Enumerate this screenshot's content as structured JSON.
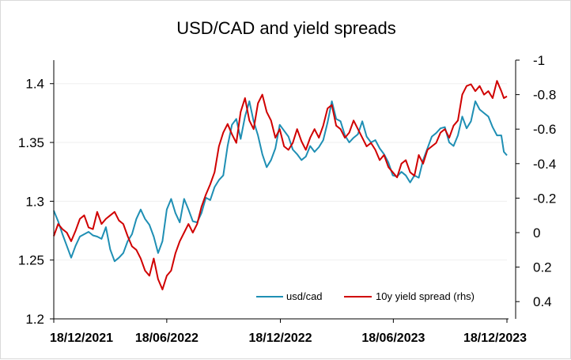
{
  "chart_data": {
    "type": "line",
    "title": "USD/CAD and yield spreads",
    "xlabel": "",
    "ylabel": "",
    "x_ticks": [
      "18/12/2021",
      "18/06/2022",
      "18/12/2022",
      "18/06/2023",
      "18/12/2023"
    ],
    "xlim": [
      "2021-12-18",
      "2023-12-18"
    ],
    "ylim": [
      1.2,
      1.42
    ],
    "y_ticks": [
      "1.2",
      "1.25",
      "1.3",
      "1.35",
      "1.4"
    ],
    "y2lim": [
      -1.0,
      0.5
    ],
    "y2_inverted": true,
    "y2_ticks": [
      "-1",
      "-0.8",
      "-0.6",
      "-0.4",
      "-0.2",
      "0",
      "0.2",
      "0.4"
    ],
    "grid": "horizontal",
    "legend": "bottom-right",
    "series": [
      {
        "name": "usd/cad",
        "axis": "left",
        "color": "#1f8fb4",
        "points": [
          [
            "2021-12-18",
            1.292
          ],
          [
            "2021-12-25",
            1.283
          ],
          [
            "2022-01-01",
            1.272
          ],
          [
            "2022-01-08",
            1.262
          ],
          [
            "2022-01-15",
            1.252
          ],
          [
            "2022-01-22",
            1.262
          ],
          [
            "2022-01-29",
            1.27
          ],
          [
            "2022-02-05",
            1.272
          ],
          [
            "2022-02-12",
            1.274
          ],
          [
            "2022-02-19",
            1.271
          ],
          [
            "2022-02-26",
            1.27
          ],
          [
            "2022-03-05",
            1.268
          ],
          [
            "2022-03-12",
            1.278
          ],
          [
            "2022-03-19",
            1.259
          ],
          [
            "2022-03-26",
            1.249
          ],
          [
            "2022-04-02",
            1.252
          ],
          [
            "2022-04-09",
            1.256
          ],
          [
            "2022-04-16",
            1.266
          ],
          [
            "2022-04-23",
            1.272
          ],
          [
            "2022-04-30",
            1.285
          ],
          [
            "2022-05-07",
            1.293
          ],
          [
            "2022-05-14",
            1.285
          ],
          [
            "2022-05-21",
            1.28
          ],
          [
            "2022-05-28",
            1.27
          ],
          [
            "2022-06-04",
            1.256
          ],
          [
            "2022-06-11",
            1.266
          ],
          [
            "2022-06-18",
            1.293
          ],
          [
            "2022-06-25",
            1.302
          ],
          [
            "2022-07-02",
            1.29
          ],
          [
            "2022-07-09",
            1.282
          ],
          [
            "2022-07-16",
            1.302
          ],
          [
            "2022-07-23",
            1.293
          ],
          [
            "2022-07-30",
            1.283
          ],
          [
            "2022-08-06",
            1.282
          ],
          [
            "2022-08-13",
            1.29
          ],
          [
            "2022-08-20",
            1.303
          ],
          [
            "2022-08-27",
            1.301
          ],
          [
            "2022-09-03",
            1.312
          ],
          [
            "2022-09-10",
            1.318
          ],
          [
            "2022-09-17",
            1.322
          ],
          [
            "2022-09-24",
            1.347
          ],
          [
            "2022-10-01",
            1.365
          ],
          [
            "2022-10-08",
            1.37
          ],
          [
            "2022-10-15",
            1.353
          ],
          [
            "2022-10-22",
            1.372
          ],
          [
            "2022-10-29",
            1.385
          ],
          [
            "2022-11-05",
            1.368
          ],
          [
            "2022-11-12",
            1.356
          ],
          [
            "2022-11-19",
            1.34
          ],
          [
            "2022-11-26",
            1.329
          ],
          [
            "2022-12-03",
            1.335
          ],
          [
            "2022-12-10",
            1.345
          ],
          [
            "2022-12-17",
            1.365
          ],
          [
            "2022-12-24",
            1.36
          ],
          [
            "2022-12-31",
            1.355
          ],
          [
            "2023-01-07",
            1.344
          ],
          [
            "2023-01-14",
            1.34
          ],
          [
            "2023-01-21",
            1.335
          ],
          [
            "2023-01-28",
            1.338
          ],
          [
            "2023-02-04",
            1.347
          ],
          [
            "2023-02-11",
            1.342
          ],
          [
            "2023-02-18",
            1.346
          ],
          [
            "2023-02-25",
            1.352
          ],
          [
            "2023-03-04",
            1.367
          ],
          [
            "2023-03-11",
            1.385
          ],
          [
            "2023-03-18",
            1.37
          ],
          [
            "2023-03-25",
            1.368
          ],
          [
            "2023-04-01",
            1.356
          ],
          [
            "2023-04-08",
            1.35
          ],
          [
            "2023-04-15",
            1.354
          ],
          [
            "2023-04-22",
            1.357
          ],
          [
            "2023-04-29",
            1.368
          ],
          [
            "2023-05-06",
            1.355
          ],
          [
            "2023-05-13",
            1.35
          ],
          [
            "2023-05-20",
            1.352
          ],
          [
            "2023-05-27",
            1.345
          ],
          [
            "2023-06-03",
            1.34
          ],
          [
            "2023-06-10",
            1.333
          ],
          [
            "2023-06-17",
            1.322
          ],
          [
            "2023-06-24",
            1.321
          ],
          [
            "2023-07-01",
            1.325
          ],
          [
            "2023-07-08",
            1.322
          ],
          [
            "2023-07-15",
            1.316
          ],
          [
            "2023-07-22",
            1.322
          ],
          [
            "2023-07-29",
            1.32
          ],
          [
            "2023-08-05",
            1.335
          ],
          [
            "2023-08-12",
            1.345
          ],
          [
            "2023-08-19",
            1.355
          ],
          [
            "2023-08-26",
            1.358
          ],
          [
            "2023-09-02",
            1.362
          ],
          [
            "2023-09-09",
            1.363
          ],
          [
            "2023-09-16",
            1.35
          ],
          [
            "2023-09-23",
            1.347
          ],
          [
            "2023-09-30",
            1.356
          ],
          [
            "2023-10-07",
            1.372
          ],
          [
            "2023-10-14",
            1.362
          ],
          [
            "2023-10-21",
            1.368
          ],
          [
            "2023-10-28",
            1.385
          ],
          [
            "2023-11-04",
            1.378
          ],
          [
            "2023-11-11",
            1.375
          ],
          [
            "2023-11-18",
            1.372
          ],
          [
            "2023-11-25",
            1.363
          ],
          [
            "2023-12-02",
            1.356
          ],
          [
            "2023-12-09",
            1.356
          ],
          [
            "2023-12-13",
            1.342
          ],
          [
            "2023-12-18",
            1.339
          ]
        ]
      },
      {
        "name": "10y yield spread (rhs)",
        "axis": "right",
        "color": "#d00000",
        "points": [
          [
            "2021-12-18",
            0.02
          ],
          [
            "2021-12-25",
            -0.05
          ],
          [
            "2022-01-01",
            -0.02
          ],
          [
            "2022-01-08",
            0.0
          ],
          [
            "2022-01-15",
            0.05
          ],
          [
            "2022-01-22",
            -0.01
          ],
          [
            "2022-01-29",
            -0.08
          ],
          [
            "2022-02-05",
            -0.1
          ],
          [
            "2022-02-12",
            -0.03
          ],
          [
            "2022-02-19",
            -0.02
          ],
          [
            "2022-02-26",
            -0.12
          ],
          [
            "2022-03-05",
            -0.05
          ],
          [
            "2022-03-12",
            -0.08
          ],
          [
            "2022-03-19",
            -0.1
          ],
          [
            "2022-03-26",
            -0.12
          ],
          [
            "2022-04-02",
            -0.07
          ],
          [
            "2022-04-09",
            -0.05
          ],
          [
            "2022-04-16",
            0.02
          ],
          [
            "2022-04-23",
            0.08
          ],
          [
            "2022-04-30",
            0.1
          ],
          [
            "2022-05-07",
            0.15
          ],
          [
            "2022-05-14",
            0.22
          ],
          [
            "2022-05-21",
            0.25
          ],
          [
            "2022-05-28",
            0.15
          ],
          [
            "2022-06-04",
            0.27
          ],
          [
            "2022-06-11",
            0.33
          ],
          [
            "2022-06-18",
            0.25
          ],
          [
            "2022-06-25",
            0.22
          ],
          [
            "2022-07-02",
            0.12
          ],
          [
            "2022-07-09",
            0.05
          ],
          [
            "2022-07-16",
            0.0
          ],
          [
            "2022-07-23",
            -0.05
          ],
          [
            "2022-07-30",
            0.0
          ],
          [
            "2022-08-06",
            -0.05
          ],
          [
            "2022-08-13",
            -0.15
          ],
          [
            "2022-08-20",
            -0.22
          ],
          [
            "2022-08-27",
            -0.28
          ],
          [
            "2022-09-03",
            -0.35
          ],
          [
            "2022-09-10",
            -0.5
          ],
          [
            "2022-09-17",
            -0.58
          ],
          [
            "2022-09-24",
            -0.63
          ],
          [
            "2022-10-01",
            -0.57
          ],
          [
            "2022-10-08",
            -0.52
          ],
          [
            "2022-10-15",
            -0.7
          ],
          [
            "2022-10-22",
            -0.78
          ],
          [
            "2022-10-29",
            -0.65
          ],
          [
            "2022-11-05",
            -0.6
          ],
          [
            "2022-11-12",
            -0.75
          ],
          [
            "2022-11-19",
            -0.8
          ],
          [
            "2022-11-26",
            -0.7
          ],
          [
            "2022-12-03",
            -0.65
          ],
          [
            "2022-12-10",
            -0.55
          ],
          [
            "2022-12-17",
            -0.6
          ],
          [
            "2022-12-24",
            -0.5
          ],
          [
            "2022-12-31",
            -0.48
          ],
          [
            "2023-01-07",
            -0.52
          ],
          [
            "2023-01-14",
            -0.6
          ],
          [
            "2023-01-21",
            -0.53
          ],
          [
            "2023-01-28",
            -0.48
          ],
          [
            "2023-02-04",
            -0.55
          ],
          [
            "2023-02-11",
            -0.6
          ],
          [
            "2023-02-18",
            -0.55
          ],
          [
            "2023-02-25",
            -0.62
          ],
          [
            "2023-03-04",
            -0.72
          ],
          [
            "2023-03-11",
            -0.74
          ],
          [
            "2023-03-18",
            -0.62
          ],
          [
            "2023-03-25",
            -0.6
          ],
          [
            "2023-04-01",
            -0.55
          ],
          [
            "2023-04-08",
            -0.58
          ],
          [
            "2023-04-15",
            -0.65
          ],
          [
            "2023-04-22",
            -0.6
          ],
          [
            "2023-04-29",
            -0.55
          ],
          [
            "2023-05-06",
            -0.5
          ],
          [
            "2023-05-13",
            -0.52
          ],
          [
            "2023-05-20",
            -0.48
          ],
          [
            "2023-05-27",
            -0.42
          ],
          [
            "2023-06-03",
            -0.45
          ],
          [
            "2023-06-10",
            -0.38
          ],
          [
            "2023-06-17",
            -0.35
          ],
          [
            "2023-06-24",
            -0.32
          ],
          [
            "2023-07-01",
            -0.4
          ],
          [
            "2023-07-08",
            -0.42
          ],
          [
            "2023-07-15",
            -0.35
          ],
          [
            "2023-07-22",
            -0.33
          ],
          [
            "2023-07-29",
            -0.45
          ],
          [
            "2023-08-05",
            -0.4
          ],
          [
            "2023-08-12",
            -0.48
          ],
          [
            "2023-08-19",
            -0.5
          ],
          [
            "2023-08-26",
            -0.52
          ],
          [
            "2023-09-02",
            -0.58
          ],
          [
            "2023-09-09",
            -0.6
          ],
          [
            "2023-09-16",
            -0.55
          ],
          [
            "2023-09-23",
            -0.62
          ],
          [
            "2023-09-30",
            -0.65
          ],
          [
            "2023-10-07",
            -0.8
          ],
          [
            "2023-10-14",
            -0.85
          ],
          [
            "2023-10-21",
            -0.86
          ],
          [
            "2023-10-28",
            -0.82
          ],
          [
            "2023-11-04",
            -0.85
          ],
          [
            "2023-11-11",
            -0.8
          ],
          [
            "2023-11-18",
            -0.82
          ],
          [
            "2023-11-25",
            -0.78
          ],
          [
            "2023-12-02",
            -0.88
          ],
          [
            "2023-12-09",
            -0.82
          ],
          [
            "2023-12-13",
            -0.78
          ],
          [
            "2023-12-18",
            -0.79
          ]
        ]
      }
    ]
  }
}
